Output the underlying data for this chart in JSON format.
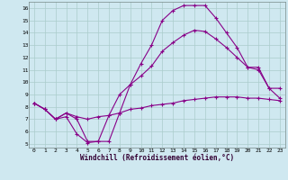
{
  "xlabel": "Windchill (Refroidissement éolien,°C)",
  "bg_color": "#cfe8f0",
  "grid_color": "#aacccc",
  "line_color": "#880088",
  "xlim": [
    -0.5,
    23.5
  ],
  "ylim": [
    4.7,
    16.5
  ],
  "xticks": [
    0,
    1,
    2,
    3,
    4,
    5,
    6,
    7,
    8,
    9,
    10,
    11,
    12,
    13,
    14,
    15,
    16,
    17,
    18,
    19,
    20,
    21,
    22,
    23
  ],
  "yticks": [
    5,
    6,
    7,
    8,
    9,
    10,
    11,
    12,
    13,
    14,
    15,
    16
  ],
  "line1_x": [
    0,
    1,
    2,
    3,
    4,
    5,
    6,
    7,
    8,
    9,
    10,
    11,
    12,
    13,
    14,
    15,
    16,
    17,
    18,
    19,
    20,
    21,
    22,
    23
  ],
  "line1_y": [
    8.3,
    7.8,
    7.0,
    7.5,
    7.0,
    5.2,
    5.2,
    7.3,
    9.0,
    9.8,
    10.5,
    11.3,
    12.5,
    13.2,
    13.8,
    14.2,
    14.1,
    13.5,
    12.8,
    12.0,
    11.2,
    11.2,
    9.5,
    8.7
  ],
  "line2_x": [
    0,
    1,
    2,
    3,
    4,
    5,
    6,
    7,
    8,
    9,
    10,
    11,
    12,
    13,
    14,
    15,
    16,
    17,
    18,
    19,
    20,
    21,
    22,
    23
  ],
  "line2_y": [
    8.3,
    7.8,
    7.0,
    7.2,
    5.8,
    5.1,
    5.2,
    5.2,
    7.5,
    9.8,
    11.5,
    13.0,
    15.0,
    15.8,
    16.2,
    16.2,
    16.2,
    15.2,
    14.0,
    12.8,
    11.2,
    11.0,
    9.5,
    9.5
  ],
  "line3_x": [
    0,
    1,
    2,
    3,
    4,
    5,
    6,
    7,
    8,
    9,
    10,
    11,
    12,
    13,
    14,
    15,
    16,
    17,
    18,
    19,
    20,
    21,
    22,
    23
  ],
  "line3_y": [
    8.3,
    7.8,
    7.0,
    7.5,
    7.2,
    7.0,
    7.2,
    7.3,
    7.5,
    7.8,
    7.9,
    8.1,
    8.2,
    8.3,
    8.5,
    8.6,
    8.7,
    8.8,
    8.8,
    8.8,
    8.7,
    8.7,
    8.6,
    8.5
  ]
}
